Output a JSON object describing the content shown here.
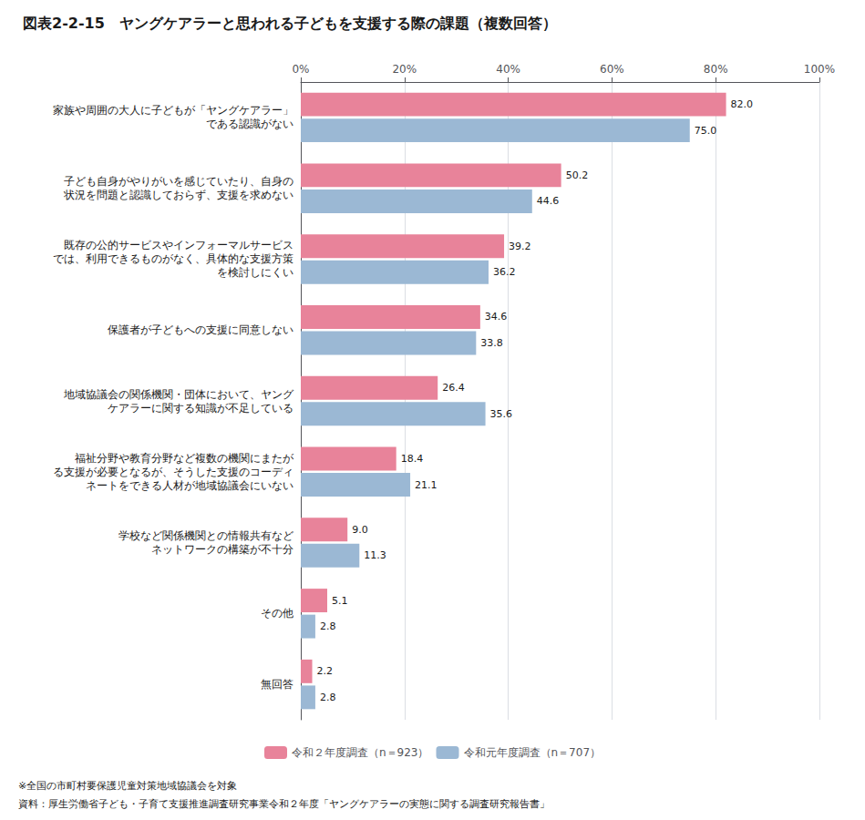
{
  "chart_data": {
    "type": "bar",
    "orientation": "horizontal",
    "title": "図表2-2-15　ヤングケアラーと思われる子どもを支援する際の課題（複数回答）",
    "categories": [
      "家族や周囲の大人に子どもが「ヤングケアラー」\nである認識がない",
      "子ども自身がやりがいを感じていたり、自身の\n状況を問題と認識しておらず、支援を求めない",
      "既存の公的サービスやインフォーマルサービス\nでは、利用できるものがなく、具体的な支援方策\nを検討しにくい",
      "保護者が子どもへの支援に同意しない",
      "地域協議会の関係機関・団体において、ヤング\nケアラーに関する知識が不足している",
      "福祉分野や教育分野など複数の機関にまたが\nる支援が必要となるが、そうした支援のコーディ\nネートをできる人材が地域協議会にいない",
      "学校など関係機関との情報共有など\nネットワークの構築が不十分",
      "その他",
      "無回答"
    ],
    "series": [
      {
        "name": "令和２年度調査（n＝923）",
        "color": "#E8839A",
        "values": [
          82.0,
          50.2,
          39.2,
          34.6,
          26.4,
          18.4,
          9.0,
          5.1,
          2.2
        ],
        "value_labels": [
          "82.0",
          "50.2",
          "39.2",
          "34.6",
          "26.4",
          "18.4",
          "9.0",
          "5.1",
          "2.2"
        ]
      },
      {
        "name": "令和元年度調査（n＝707）",
        "color": "#9BB8D4",
        "values": [
          75.0,
          44.6,
          36.2,
          33.8,
          35.6,
          21.1,
          11.3,
          2.8,
          2.8
        ],
        "value_labels": [
          "75.0",
          "44.6",
          "36.2",
          "33.8",
          "35.6",
          "21.1",
          "11.3",
          "2.8",
          "2.8"
        ]
      }
    ],
    "xlim": [
      0,
      100
    ],
    "xticks": [
      {
        "value": 0,
        "label": "0%"
      },
      {
        "value": 20,
        "label": "20%"
      },
      {
        "value": 40,
        "label": "40%"
      },
      {
        "value": 60,
        "label": "60%"
      },
      {
        "value": 80,
        "label": "80%"
      },
      {
        "value": 100,
        "label": "100%"
      }
    ],
    "grid": true,
    "data_labels": true,
    "legend": "bottom",
    "annotations": [
      "※全国の市町村要保護児童対策地域協議会を対象",
      "資料：厚生労働省子ども・子育て支援推進調査研究事業令和２年度「ヤングケアラーの実態に関する調査研究報告書」"
    ]
  }
}
